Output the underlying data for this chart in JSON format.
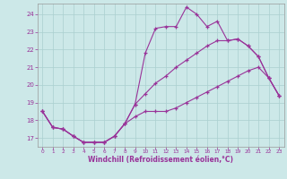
{
  "xlabel": "Windchill (Refroidissement éolien,°C)",
  "background_color": "#cce8e8",
  "line_color": "#993399",
  "grid_color": "#aacfcf",
  "xlim": [
    -0.5,
    23.5
  ],
  "ylim": [
    16.5,
    24.6
  ],
  "yticks": [
    17,
    18,
    19,
    20,
    21,
    22,
    23,
    24
  ],
  "xticks": [
    0,
    1,
    2,
    3,
    4,
    5,
    6,
    7,
    8,
    9,
    10,
    11,
    12,
    13,
    14,
    15,
    16,
    17,
    18,
    19,
    20,
    21,
    22,
    23
  ],
  "hours": [
    0,
    1,
    2,
    3,
    4,
    5,
    6,
    7,
    8,
    9,
    10,
    11,
    12,
    13,
    14,
    15,
    16,
    17,
    18,
    19,
    20,
    21,
    22,
    23
  ],
  "line1": [
    18.5,
    17.6,
    17.5,
    17.1,
    16.75,
    16.75,
    16.75,
    17.1,
    17.8,
    18.9,
    21.8,
    23.2,
    23.3,
    23.3,
    24.4,
    24.0,
    23.3,
    23.6,
    22.5,
    22.6,
    22.2,
    21.6,
    20.4,
    19.4
  ],
  "line2": [
    18.5,
    17.6,
    17.5,
    17.1,
    16.75,
    16.75,
    16.75,
    17.1,
    17.8,
    18.9,
    19.5,
    20.1,
    20.5,
    21.0,
    21.4,
    21.8,
    22.2,
    22.5,
    22.5,
    22.6,
    22.2,
    21.6,
    20.4,
    19.4
  ],
  "line3": [
    18.5,
    17.6,
    17.5,
    17.1,
    16.75,
    16.75,
    16.75,
    17.1,
    17.8,
    18.2,
    18.5,
    18.5,
    18.5,
    18.7,
    19.0,
    19.3,
    19.6,
    19.9,
    20.2,
    20.5,
    20.8,
    21.0,
    20.4,
    19.4
  ]
}
